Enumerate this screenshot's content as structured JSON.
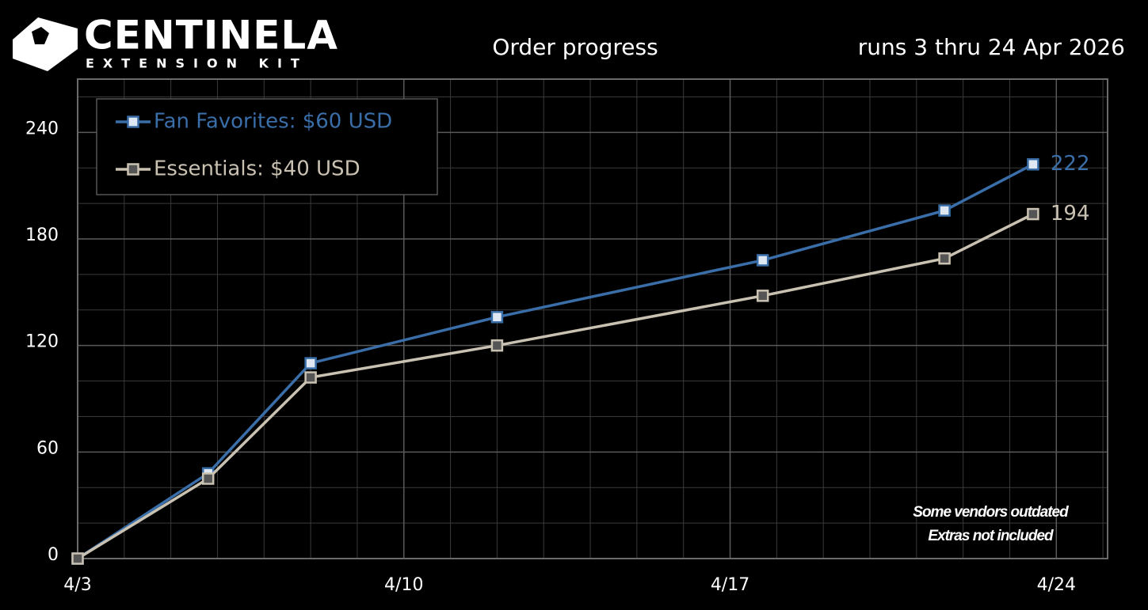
{
  "logo": {
    "name": "CENTINELA",
    "tagline": "EXTENSION KIT"
  },
  "chart_data": {
    "type": "line",
    "title": "Order progress",
    "subtitle": "runs 3 thru 24 Apr 2026",
    "x": [
      3,
      5.8,
      8,
      12,
      17.7,
      21.6,
      23.5
    ],
    "series": [
      {
        "name": "Fan Favorites: $60 USD",
        "color": "#3a6ea8",
        "marker_fill": "#dfe8f2",
        "values": [
          0,
          48,
          110,
          136,
          168,
          196,
          222
        ]
      },
      {
        "name": "Essentials: $40 USD",
        "color": "#c9c1b1",
        "marker_fill": "#555555",
        "values": [
          0,
          45,
          102,
          120,
          148,
          169,
          194
        ]
      }
    ],
    "xlim": [
      3,
      25.1
    ],
    "xticks": [
      {
        "value": 3,
        "label": "4/3"
      },
      {
        "value": 10,
        "label": "4/10"
      },
      {
        "value": 17,
        "label": "4/17"
      },
      {
        "value": 24,
        "label": "4/24"
      }
    ],
    "x_minor_grid": [
      4,
      5,
      6,
      7,
      8,
      9,
      11,
      12,
      13,
      14,
      15,
      16,
      18,
      19,
      20,
      21,
      22,
      23,
      25
    ],
    "ylim": [
      0,
      270
    ],
    "yticks": [
      0,
      60,
      120,
      180,
      240
    ],
    "y_minor_grid": [
      20,
      40,
      80,
      100,
      140,
      160,
      200,
      220,
      260
    ],
    "grid": true,
    "legend_position": "upper left",
    "annotations": [
      "Some vendors outdated",
      "Extras not included"
    ]
  }
}
